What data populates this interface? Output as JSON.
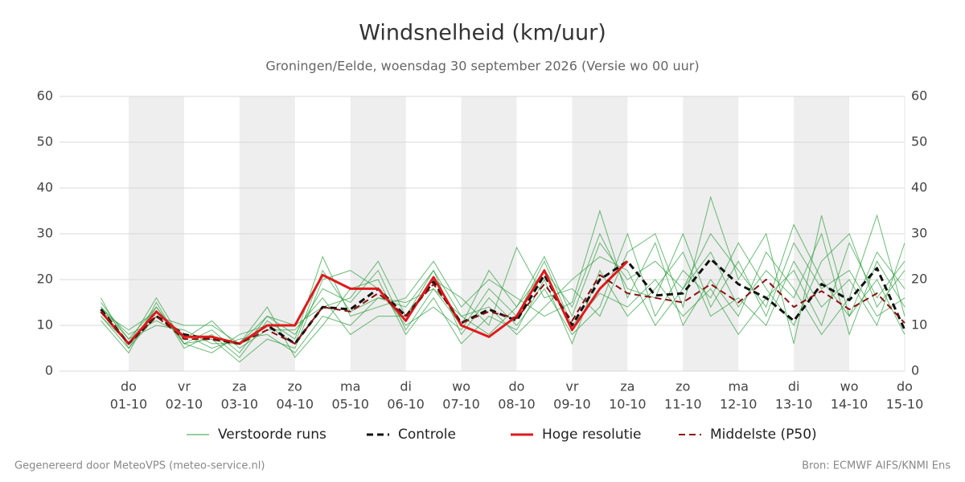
{
  "chart_data": {
    "type": "line",
    "title": "Windsnelheid (km/uur)",
    "subtitle": "Groningen/Eelde, woensdag 30 september 2026 (Versie wo 00 uur)",
    "categories": [
      null,
      "01-10",
      null,
      "02-10",
      null,
      "03-10",
      null,
      "04-10",
      null,
      "05-10",
      null,
      "06-10",
      null,
      "07-10",
      null,
      "08-10",
      null,
      "09-10",
      null,
      "10-10",
      null,
      "11-10",
      null,
      "12-10",
      null,
      "13-10",
      null,
      "14-10",
      null,
      "15-10"
    ],
    "category_days": [
      null,
      "do",
      null,
      "vr",
      null,
      "za",
      null,
      "zo",
      null,
      "ma",
      null,
      "di",
      null,
      "wo",
      null,
      "do",
      null,
      "vr",
      null,
      "za",
      null,
      "zo",
      null,
      "ma",
      null,
      "di",
      null,
      "wo",
      null,
      "do"
    ],
    "ylim": [
      0,
      60
    ],
    "yticks": [
      0,
      10,
      20,
      30,
      40,
      50,
      60
    ],
    "grid": true,
    "perturbed": {
      "name": "Verstoorde runs",
      "color": "#2f9e3f",
      "runs": [
        [
          12,
          5,
          14,
          6,
          9,
          4,
          12,
          8,
          18,
          15,
          22,
          9,
          18,
          12,
          8,
          14,
          25,
          12,
          28,
          20,
          24,
          18,
          30,
          22,
          14,
          32,
          20,
          12,
          26,
          18
        ],
        [
          14,
          8,
          11,
          8,
          5,
          7,
          8,
          4,
          12,
          10,
          16,
          14,
          22,
          8,
          16,
          10,
          18,
          8,
          14,
          30,
          12,
          22,
          16,
          28,
          18,
          10,
          24,
          30,
          14,
          22
        ],
        [
          11,
          4,
          15,
          5,
          8,
          3,
          11,
          7,
          25,
          12,
          14,
          16,
          24,
          14,
          20,
          16,
          12,
          15,
          35,
          16,
          28,
          10,
          20,
          12,
          26,
          18,
          8,
          16,
          34,
          12
        ],
        [
          15,
          7,
          10,
          9,
          6,
          6,
          14,
          3,
          10,
          18,
          20,
          8,
          16,
          6,
          12,
          9,
          20,
          6,
          22,
          12,
          18,
          26,
          12,
          16,
          10,
          24,
          14,
          20,
          10,
          28
        ],
        [
          13,
          9,
          13,
          7,
          11,
          5,
          9,
          9,
          16,
          8,
          12,
          12,
          20,
          16,
          10,
          27,
          16,
          18,
          12,
          26,
          30,
          14,
          38,
          20,
          30,
          6,
          34,
          12,
          20,
          8
        ],
        [
          12,
          6,
          16,
          6,
          7,
          2,
          7,
          5,
          20,
          22,
          18,
          10,
          14,
          9,
          18,
          12,
          24,
          10,
          17,
          14,
          20,
          12,
          18,
          8,
          16,
          22,
          10,
          28,
          16,
          24
        ],
        [
          16,
          5,
          12,
          10,
          10,
          6,
          12,
          10,
          14,
          16,
          24,
          12,
          22,
          12,
          14,
          8,
          14,
          20,
          25,
          22,
          10,
          18,
          26,
          14,
          22,
          16,
          30,
          8,
          24,
          14
        ],
        [
          14,
          7,
          14,
          6,
          4,
          8,
          10,
          6,
          22,
          13,
          16,
          15,
          18,
          10,
          22,
          14,
          22,
          14,
          30,
          18,
          16,
          30,
          14,
          24,
          12,
          28,
          18,
          22,
          12,
          16
        ]
      ]
    },
    "series": [
      {
        "name": "Controle",
        "color": "#111111",
        "dash": true,
        "width": 3,
        "values": [
          13.5,
          6,
          12,
          8,
          7,
          6,
          10,
          6,
          14,
          13.5,
          18,
          12,
          19.5,
          10.5,
          13.5,
          11,
          21,
          10,
          20,
          24,
          16.5,
          17,
          24.5,
          19,
          16,
          11,
          19,
          15.5,
          22.5,
          9
        ]
      },
      {
        "name": "Hoge resolutie",
        "color": "#e0191b",
        "dash": false,
        "width": 3,
        "values": [
          13,
          6,
          13,
          7.5,
          7.5,
          6,
          10,
          10,
          21,
          18,
          18,
          11,
          20.5,
          10,
          7.5,
          12,
          22,
          9,
          18,
          24,
          null,
          null,
          null,
          null,
          null,
          null,
          null,
          null,
          null,
          null
        ]
      },
      {
        "name": "Middelste (P50)",
        "color": "#8b1010",
        "dash": true,
        "width": 2,
        "values": [
          13,
          6,
          12,
          7,
          7,
          6,
          9,
          6,
          14,
          13,
          17,
          12,
          19,
          10.5,
          13,
          11.5,
          19,
          11,
          21,
          17,
          16,
          15,
          19,
          15,
          20,
          14,
          17.5,
          13.5,
          17,
          10.5
        ]
      }
    ],
    "footer_left": "Gegenereerd door MeteoVPS (meteo-service.nl)",
    "footer_right": "Bron: ECMWF AIFS/KNMI Ens"
  }
}
